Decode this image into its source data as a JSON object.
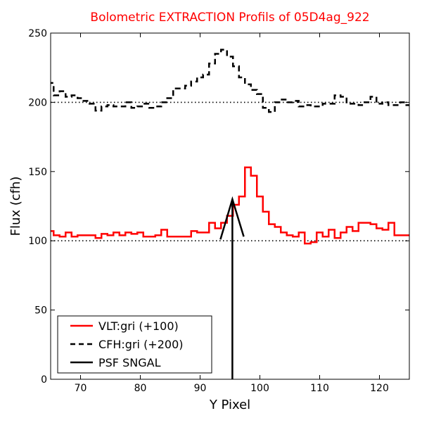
{
  "chart_data": {
    "type": "line",
    "title": "Bolometric EXTRACTION Profils of 05D4ag_922",
    "title_color": "#ff0000",
    "xlabel": "Y Pixel",
    "ylabel": "Flux (cfh)",
    "xlim": [
      65,
      125
    ],
    "ylim": [
      0,
      250
    ],
    "xticks": [
      70,
      80,
      90,
      100,
      110,
      120
    ],
    "yticks": [
      0,
      50,
      100,
      150,
      200,
      250
    ],
    "grid": false,
    "legend_position": "lower-left",
    "reference_lines": [
      {
        "y": 100,
        "style": "dotted",
        "color": "#000000"
      },
      {
        "y": 200,
        "style": "dotted",
        "color": "#000000"
      }
    ],
    "series": [
      {
        "name": "VLT:gri (+100)",
        "color": "#ff0000",
        "style": "steps-solid",
        "x": [
          65,
          66,
          67,
          68,
          69,
          70,
          71,
          72,
          73,
          74,
          75,
          76,
          77,
          78,
          79,
          80,
          81,
          82,
          83,
          84,
          85,
          86,
          87,
          88,
          89,
          90,
          91,
          92,
          93,
          94,
          95,
          96,
          97,
          98,
          99,
          100,
          101,
          102,
          103,
          104,
          105,
          106,
          107,
          108,
          109,
          110,
          111,
          112,
          113,
          114,
          115,
          116,
          117,
          118,
          119,
          120,
          121,
          122,
          123,
          124,
          125
        ],
        "y": [
          107,
          104,
          103,
          106,
          103,
          104,
          104,
          104,
          102,
          105,
          104,
          106,
          104,
          106,
          105,
          106,
          103,
          103,
          104,
          108,
          103,
          103,
          103,
          103,
          107,
          106,
          106,
          113,
          109,
          113,
          118,
          126,
          132,
          153,
          147,
          132,
          121,
          112,
          110,
          106,
          104,
          103,
          106,
          98,
          99,
          106,
          103,
          108,
          102,
          106,
          110,
          107,
          113,
          113,
          112,
          109,
          108,
          113,
          104,
          104,
          104
        ]
      },
      {
        "name": "CFH:gri (+200)",
        "color": "#000000",
        "style": "steps-dashed",
        "x": [
          65,
          66,
          67,
          68,
          69,
          70,
          71,
          72,
          73,
          74,
          75,
          76,
          77,
          78,
          79,
          80,
          81,
          82,
          83,
          84,
          85,
          86,
          87,
          88,
          89,
          90,
          91,
          92,
          93,
          94,
          95,
          96,
          97,
          98,
          99,
          100,
          101,
          102,
          103,
          104,
          105,
          106,
          107,
          108,
          109,
          110,
          111,
          112,
          113,
          114,
          115,
          116,
          117,
          118,
          119,
          120,
          121,
          122,
          123,
          124,
          125
        ],
        "y": [
          214,
          205,
          208,
          204,
          205,
          203,
          201,
          199,
          194,
          197,
          198,
          197,
          197,
          200,
          196,
          197,
          199,
          196,
          197,
          200,
          203,
          210,
          210,
          212,
          215,
          218,
          220,
          228,
          235,
          238,
          233,
          226,
          218,
          213,
          209,
          206,
          196,
          193,
          200,
          202,
          200,
          201,
          197,
          198,
          197,
          197,
          199,
          199,
          205,
          204,
          199,
          199,
          198,
          200,
          204,
          199,
          200,
          198,
          198,
          200,
          198
        ]
      },
      {
        "name": "PSF SNGAL",
        "color": "#000000",
        "style": "solid",
        "marker": {
          "x": 95.4,
          "peak_y": 130,
          "head_left": [
            93.4,
            101
          ],
          "head_right": [
            97.3,
            103
          ]
        }
      }
    ]
  }
}
